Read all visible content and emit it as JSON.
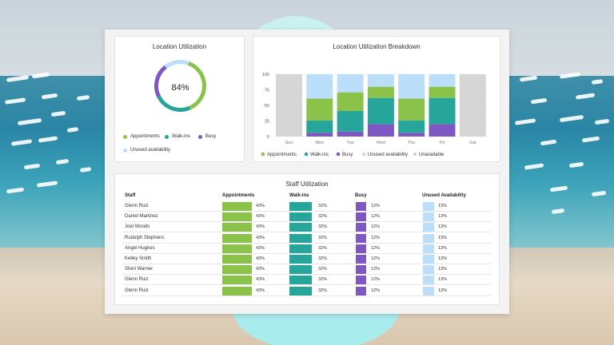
{
  "colors": {
    "appointments": "#8bc34a",
    "walk_ins": "#26a69a",
    "busy": "#7e57c2",
    "unused": "#bbdefb",
    "unavailable": "#d6d6d6"
  },
  "location_utilization": {
    "title": "Location Utilization",
    "center_value": "84%",
    "legend": [
      "Appointments",
      "Walk-ins",
      "Busy",
      "Unused availability"
    ]
  },
  "chart_data": {
    "type": "bar",
    "title": "Location Utilization Breakdown",
    "categories": [
      "Sun",
      "Mon",
      "Tue",
      "Wed",
      "Thu",
      "Fri",
      "Sat"
    ],
    "yticks": [
      0,
      25,
      50,
      75,
      100
    ],
    "ylim": [
      0,
      100
    ],
    "stacked": true,
    "series": [
      {
        "name": "Appointments",
        "values": [
          0,
          35,
          30,
          18,
          35,
          18,
          0
        ]
      },
      {
        "name": "Walk-ins",
        "values": [
          0,
          20,
          33,
          42,
          20,
          42,
          0
        ]
      },
      {
        "name": "Busy",
        "values": [
          0,
          6,
          8,
          20,
          6,
          20,
          0
        ]
      },
      {
        "name": "Unused availability",
        "values": [
          0,
          39,
          29,
          20,
          39,
          20,
          0
        ]
      },
      {
        "name": "Unavailable",
        "values": [
          100,
          0,
          0,
          0,
          0,
          0,
          100
        ]
      }
    ],
    "legend_position": "bottom"
  },
  "staff_utilization": {
    "title": "Staff Utilization",
    "headers": [
      "Staff",
      "Appointments",
      "Walk-ins",
      "Busy",
      "Unused Availability"
    ],
    "rows": [
      {
        "name": "Glenn Ruiz",
        "appointments": "43%",
        "walk_ins": "32%",
        "busy": "12%",
        "unused": "13%"
      },
      {
        "name": "Daniel Martinez",
        "appointments": "43%",
        "walk_ins": "32%",
        "busy": "12%",
        "unused": "13%"
      },
      {
        "name": "Joel Woods",
        "appointments": "43%",
        "walk_ins": "32%",
        "busy": "12%",
        "unused": "13%"
      },
      {
        "name": "Rudolph Stephens",
        "appointments": "43%",
        "walk_ins": "32%",
        "busy": "12%",
        "unused": "13%"
      },
      {
        "name": "Angel Hughes",
        "appointments": "43%",
        "walk_ins": "32%",
        "busy": "12%",
        "unused": "13%"
      },
      {
        "name": "Kelley Smith",
        "appointments": "43%",
        "walk_ins": "32%",
        "busy": "12%",
        "unused": "13%"
      },
      {
        "name": "Sheri Warner",
        "appointments": "43%",
        "walk_ins": "32%",
        "busy": "12%",
        "unused": "13%"
      },
      {
        "name": "Glenn Ruiz",
        "appointments": "43%",
        "walk_ins": "32%",
        "busy": "12%",
        "unused": "13%"
      },
      {
        "name": "Glenn Ruiz",
        "appointments": "43%",
        "walk_ins": "32%",
        "busy": "12%",
        "unused": "13%"
      }
    ]
  }
}
